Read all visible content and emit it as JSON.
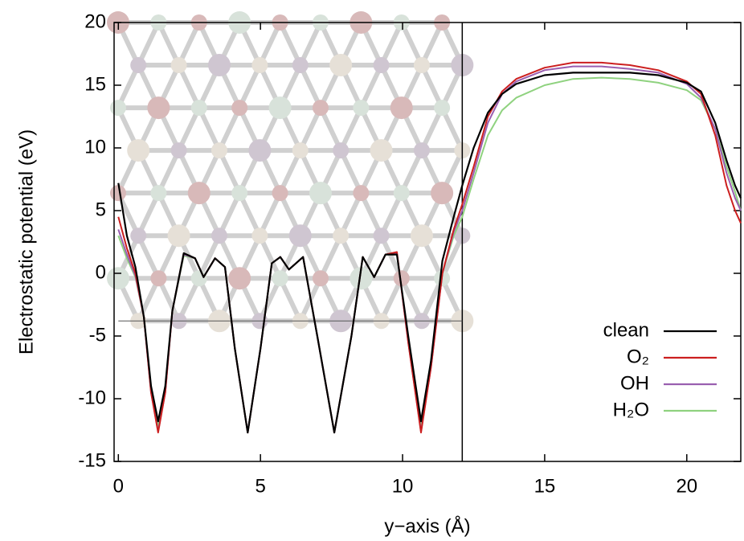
{
  "chart_data": {
    "type": "line",
    "x_label": "y−axis (Å)",
    "y_label": "Electrostatic potential (eV)",
    "x": [
      0,
      0.3,
      0.6,
      0.9,
      1.15,
      1.4,
      1.65,
      1.9,
      2.3,
      2.7,
      3.0,
      3.4,
      3.75,
      4.1,
      4.55,
      5.0,
      5.4,
      5.7,
      6.0,
      6.5,
      7.0,
      7.6,
      8.2,
      8.6,
      9.0,
      9.4,
      9.8,
      10.2,
      10.65,
      11.0,
      11.4,
      11.8,
      12.1,
      12.5,
      13,
      13.5,
      14,
      15,
      16,
      17,
      18,
      19,
      20,
      20.5,
      21,
      21.4,
      21.7,
      21.9
    ],
    "series": [
      {
        "name": "clean",
        "color": "#000000",
        "values": [
          7.2,
          3,
          0.5,
          -3.5,
          -9,
          -11.8,
          -9,
          -3,
          1.6,
          1.2,
          -0.3,
          1.2,
          0.5,
          -6,
          -12.7,
          -6,
          0.8,
          1.3,
          0.3,
          1.3,
          -5,
          -12.7,
          -5,
          1.3,
          -0.3,
          1.5,
          1.5,
          -5,
          -11.8,
          -7,
          1,
          4.5,
          7,
          10,
          12.8,
          14.3,
          15.1,
          15.8,
          16,
          16,
          16,
          15.8,
          15.2,
          14.5,
          12,
          9,
          7,
          6
        ]
      },
      {
        "name": "O₂",
        "color": "#cc1f1f",
        "values": [
          4.5,
          2,
          0,
          -3.5,
          -9.5,
          -12.7,
          -9.5,
          -3,
          1.6,
          1.2,
          -0.3,
          1.2,
          0.5,
          -6,
          -12.7,
          -6,
          0.8,
          1.3,
          0.3,
          1.3,
          -5,
          -12.7,
          -5,
          1.3,
          -0.3,
          1.5,
          1.7,
          -5.5,
          -12.7,
          -7.5,
          0,
          3.5,
          5.5,
          8.5,
          12.5,
          14.5,
          15.5,
          16.4,
          16.8,
          16.8,
          16.6,
          16.2,
          15.3,
          14.3,
          11,
          7,
          5,
          4
        ]
      },
      {
        "name": "OH",
        "color": "#9a5fb0",
        "values": [
          3.5,
          1.5,
          -0.2,
          -3.5,
          -9.5,
          -12.6,
          -9.5,
          -3,
          1.5,
          1.2,
          -0.3,
          1.2,
          0.5,
          -6,
          -12.7,
          -6,
          0.8,
          1.3,
          0.3,
          1.3,
          -5,
          -12.7,
          -5,
          1.3,
          -0.3,
          1.5,
          1.6,
          -5.5,
          -12.6,
          -7.5,
          0,
          3.3,
          5,
          8,
          12,
          14.3,
          15.3,
          16.2,
          16.5,
          16.5,
          16.3,
          16,
          15.1,
          14,
          11.5,
          8,
          6,
          5
        ]
      },
      {
        "name": "H₂O",
        "color": "#8fd27f",
        "values": [
          3,
          1.2,
          -0.3,
          -3.5,
          -9.2,
          -12.2,
          -9.2,
          -3,
          1.4,
          1.2,
          -0.3,
          1.2,
          0.5,
          -6,
          -12.7,
          -6,
          0.8,
          1.3,
          0.3,
          1.3,
          -5,
          -12.7,
          -5,
          1.3,
          -0.3,
          1.5,
          1.5,
          -5.3,
          -12.2,
          -7.2,
          0,
          3,
          4.5,
          7.5,
          11,
          13,
          14,
          15,
          15.5,
          15.6,
          15.5,
          15.2,
          14.6,
          13.8,
          11.5,
          8.5,
          6.5,
          5
        ]
      }
    ],
    "xlim": [
      -0.15,
      21.9
    ],
    "xticks": [
      0,
      5,
      10,
      15,
      20
    ],
    "ylim": [
      -15,
      20
    ],
    "yticks": [
      -15,
      -10,
      -5,
      0,
      5,
      10,
      15,
      20
    ],
    "slab_edge_x": 12.1,
    "slab_base_y": -3.8,
    "legend": "lower right"
  }
}
